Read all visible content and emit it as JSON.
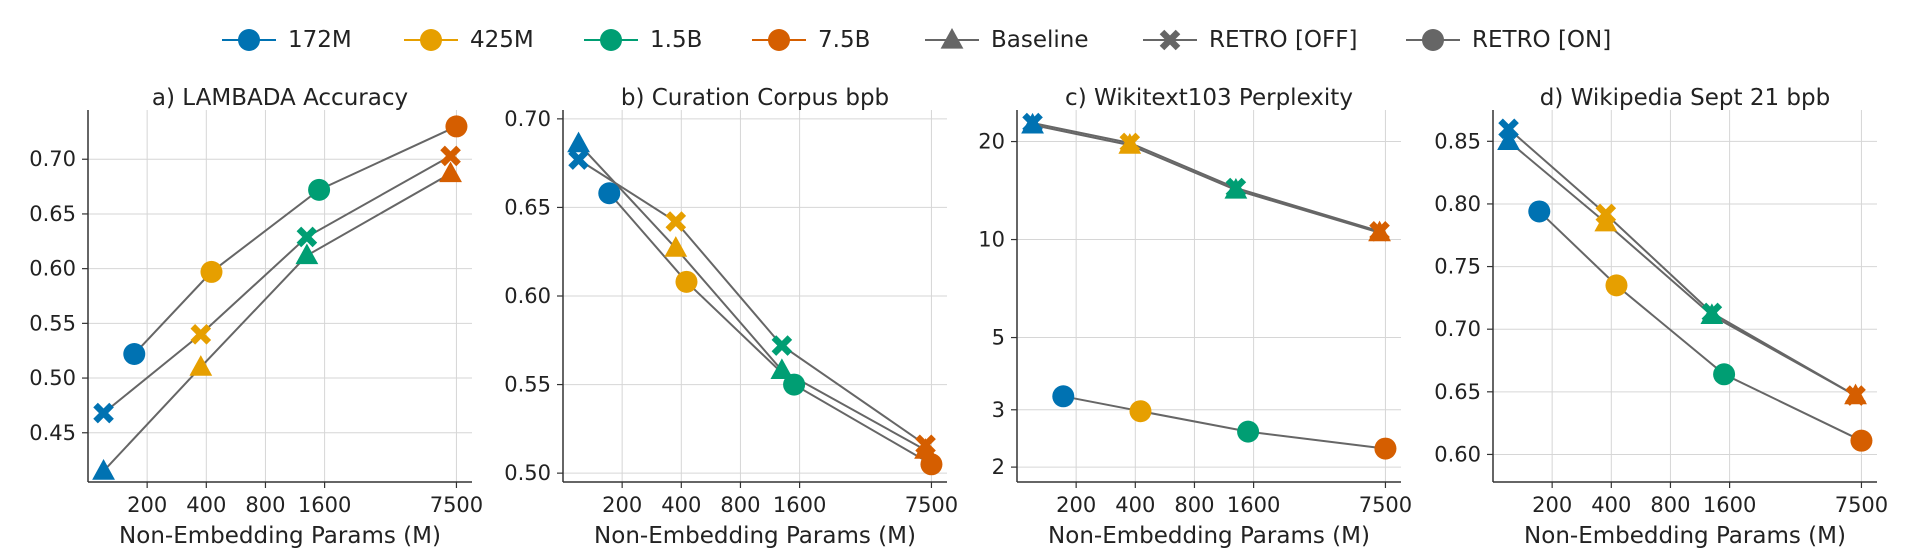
{
  "legend": {
    "items": [
      {
        "label": "172M",
        "kind": "size",
        "color": "#0072b2"
      },
      {
        "label": "425M",
        "kind": "size",
        "color": "#e69f00"
      },
      {
        "label": "1.5B",
        "kind": "size",
        "color": "#009e73"
      },
      {
        "label": "7.5B",
        "kind": "size",
        "color": "#d55e00"
      },
      {
        "label": "Baseline",
        "kind": "marker",
        "marker": "triangle",
        "color": "#666666"
      },
      {
        "label": "RETRO [OFF]",
        "kind": "marker",
        "marker": "x",
        "color": "#666666"
      },
      {
        "label": "RETRO [ON]",
        "kind": "marker",
        "marker": "circle",
        "color": "#666666"
      }
    ]
  },
  "chart_data": [
    {
      "type": "line",
      "title": "a) LAMBADA Accuracy",
      "xlabel": "Non-Embedding Params (M)",
      "ylabel": "",
      "xscale": "log",
      "xlim": [
        100,
        9000
      ],
      "xticks": [
        200,
        400,
        800,
        1600,
        7500
      ],
      "yscale": "linear",
      "ylim": [
        0.405,
        0.745
      ],
      "yticks": [
        0.45,
        0.5,
        0.55,
        0.6,
        0.65,
        0.7
      ],
      "ytick_labels": [
        "0.45",
        "0.50",
        "0.55",
        "0.60",
        "0.65",
        "0.70"
      ],
      "grid": true,
      "series": [
        {
          "name": "Baseline",
          "marker": "triangle",
          "x": [
            120,
            375,
            1300,
            7000
          ],
          "y": [
            0.415,
            0.51,
            0.612,
            0.687
          ]
        },
        {
          "name": "RETRO [OFF]",
          "marker": "x",
          "x": [
            120,
            375,
            1300,
            7000
          ],
          "y": [
            0.468,
            0.54,
            0.629,
            0.703
          ]
        },
        {
          "name": "RETRO [ON]",
          "marker": "circle",
          "x": [
            172,
            425,
            1500,
            7500
          ],
          "y": [
            0.522,
            0.597,
            0.672,
            0.73
          ]
        }
      ]
    },
    {
      "type": "line",
      "title": "b) Curation Corpus bpb",
      "xlabel": "Non-Embedding Params (M)",
      "ylabel": "",
      "xscale": "log",
      "xlim": [
        100,
        9000
      ],
      "xticks": [
        200,
        400,
        800,
        1600,
        7500
      ],
      "yscale": "linear",
      "ylim": [
        0.495,
        0.705
      ],
      "yticks": [
        0.5,
        0.55,
        0.6,
        0.65,
        0.7
      ],
      "ytick_labels": [
        "0.50",
        "0.55",
        "0.60",
        "0.65",
        "0.70"
      ],
      "grid": true,
      "series": [
        {
          "name": "Baseline",
          "marker": "triangle",
          "x": [
            120,
            375,
            1300,
            7000
          ],
          "y": [
            0.686,
            0.627,
            0.558,
            0.513
          ]
        },
        {
          "name": "RETRO [OFF]",
          "marker": "x",
          "x": [
            120,
            375,
            1300,
            7000
          ],
          "y": [
            0.677,
            0.642,
            0.572,
            0.516
          ]
        },
        {
          "name": "RETRO [ON]",
          "marker": "circle",
          "x": [
            172,
            425,
            1500,
            7500
          ],
          "y": [
            0.658,
            0.608,
            0.55,
            0.505
          ]
        }
      ]
    },
    {
      "type": "line",
      "title": "c) Wikitext103 Perplexity",
      "xlabel": "Non-Embedding Params (M)",
      "ylabel": "",
      "xscale": "log",
      "xlim": [
        100,
        9000
      ],
      "xticks": [
        200,
        400,
        800,
        1600,
        7500
      ],
      "yscale": "log",
      "ylim": [
        1.8,
        25
      ],
      "yticks": [
        2,
        3,
        5,
        10,
        20
      ],
      "ytick_labels": [
        "2",
        "3",
        "5",
        "10",
        "20"
      ],
      "grid": true,
      "series": [
        {
          "name": "Baseline",
          "marker": "triangle",
          "x": [
            120,
            375,
            1300,
            7000
          ],
          "y": [
            22.5,
            19.5,
            14.2,
            10.5
          ]
        },
        {
          "name": "RETRO [OFF]",
          "marker": "x",
          "x": [
            120,
            375,
            1300,
            7000
          ],
          "y": [
            22.8,
            19.8,
            14.4,
            10.6
          ]
        },
        {
          "name": "RETRO [ON]",
          "marker": "circle",
          "x": [
            172,
            425,
            1500,
            7500
          ],
          "y": [
            3.3,
            2.97,
            2.57,
            2.28
          ]
        }
      ]
    },
    {
      "type": "line",
      "title": "d) Wikipedia Sept 21 bpb",
      "xlabel": "Non-Embedding Params (M)",
      "ylabel": "",
      "xscale": "log",
      "xlim": [
        100,
        9000
      ],
      "xticks": [
        200,
        400,
        800,
        1600,
        7500
      ],
      "yscale": "linear",
      "ylim": [
        0.578,
        0.875
      ],
      "yticks": [
        0.6,
        0.65,
        0.7,
        0.75,
        0.8,
        0.85
      ],
      "ytick_labels": [
        "0.60",
        "0.65",
        "0.70",
        "0.75",
        "0.80",
        "0.85"
      ],
      "grid": true,
      "series": [
        {
          "name": "Baseline",
          "marker": "triangle",
          "x": [
            120,
            375,
            1300,
            7000
          ],
          "y": [
            0.85,
            0.785,
            0.711,
            0.647
          ]
        },
        {
          "name": "RETRO [OFF]",
          "marker": "x",
          "x": [
            120,
            375,
            1300,
            7000
          ],
          "y": [
            0.86,
            0.792,
            0.713,
            0.647
          ]
        },
        {
          "name": "RETRO [ON]",
          "marker": "circle",
          "x": [
            172,
            425,
            1500,
            7500
          ],
          "y": [
            0.794,
            0.735,
            0.664,
            0.611
          ]
        }
      ]
    }
  ]
}
